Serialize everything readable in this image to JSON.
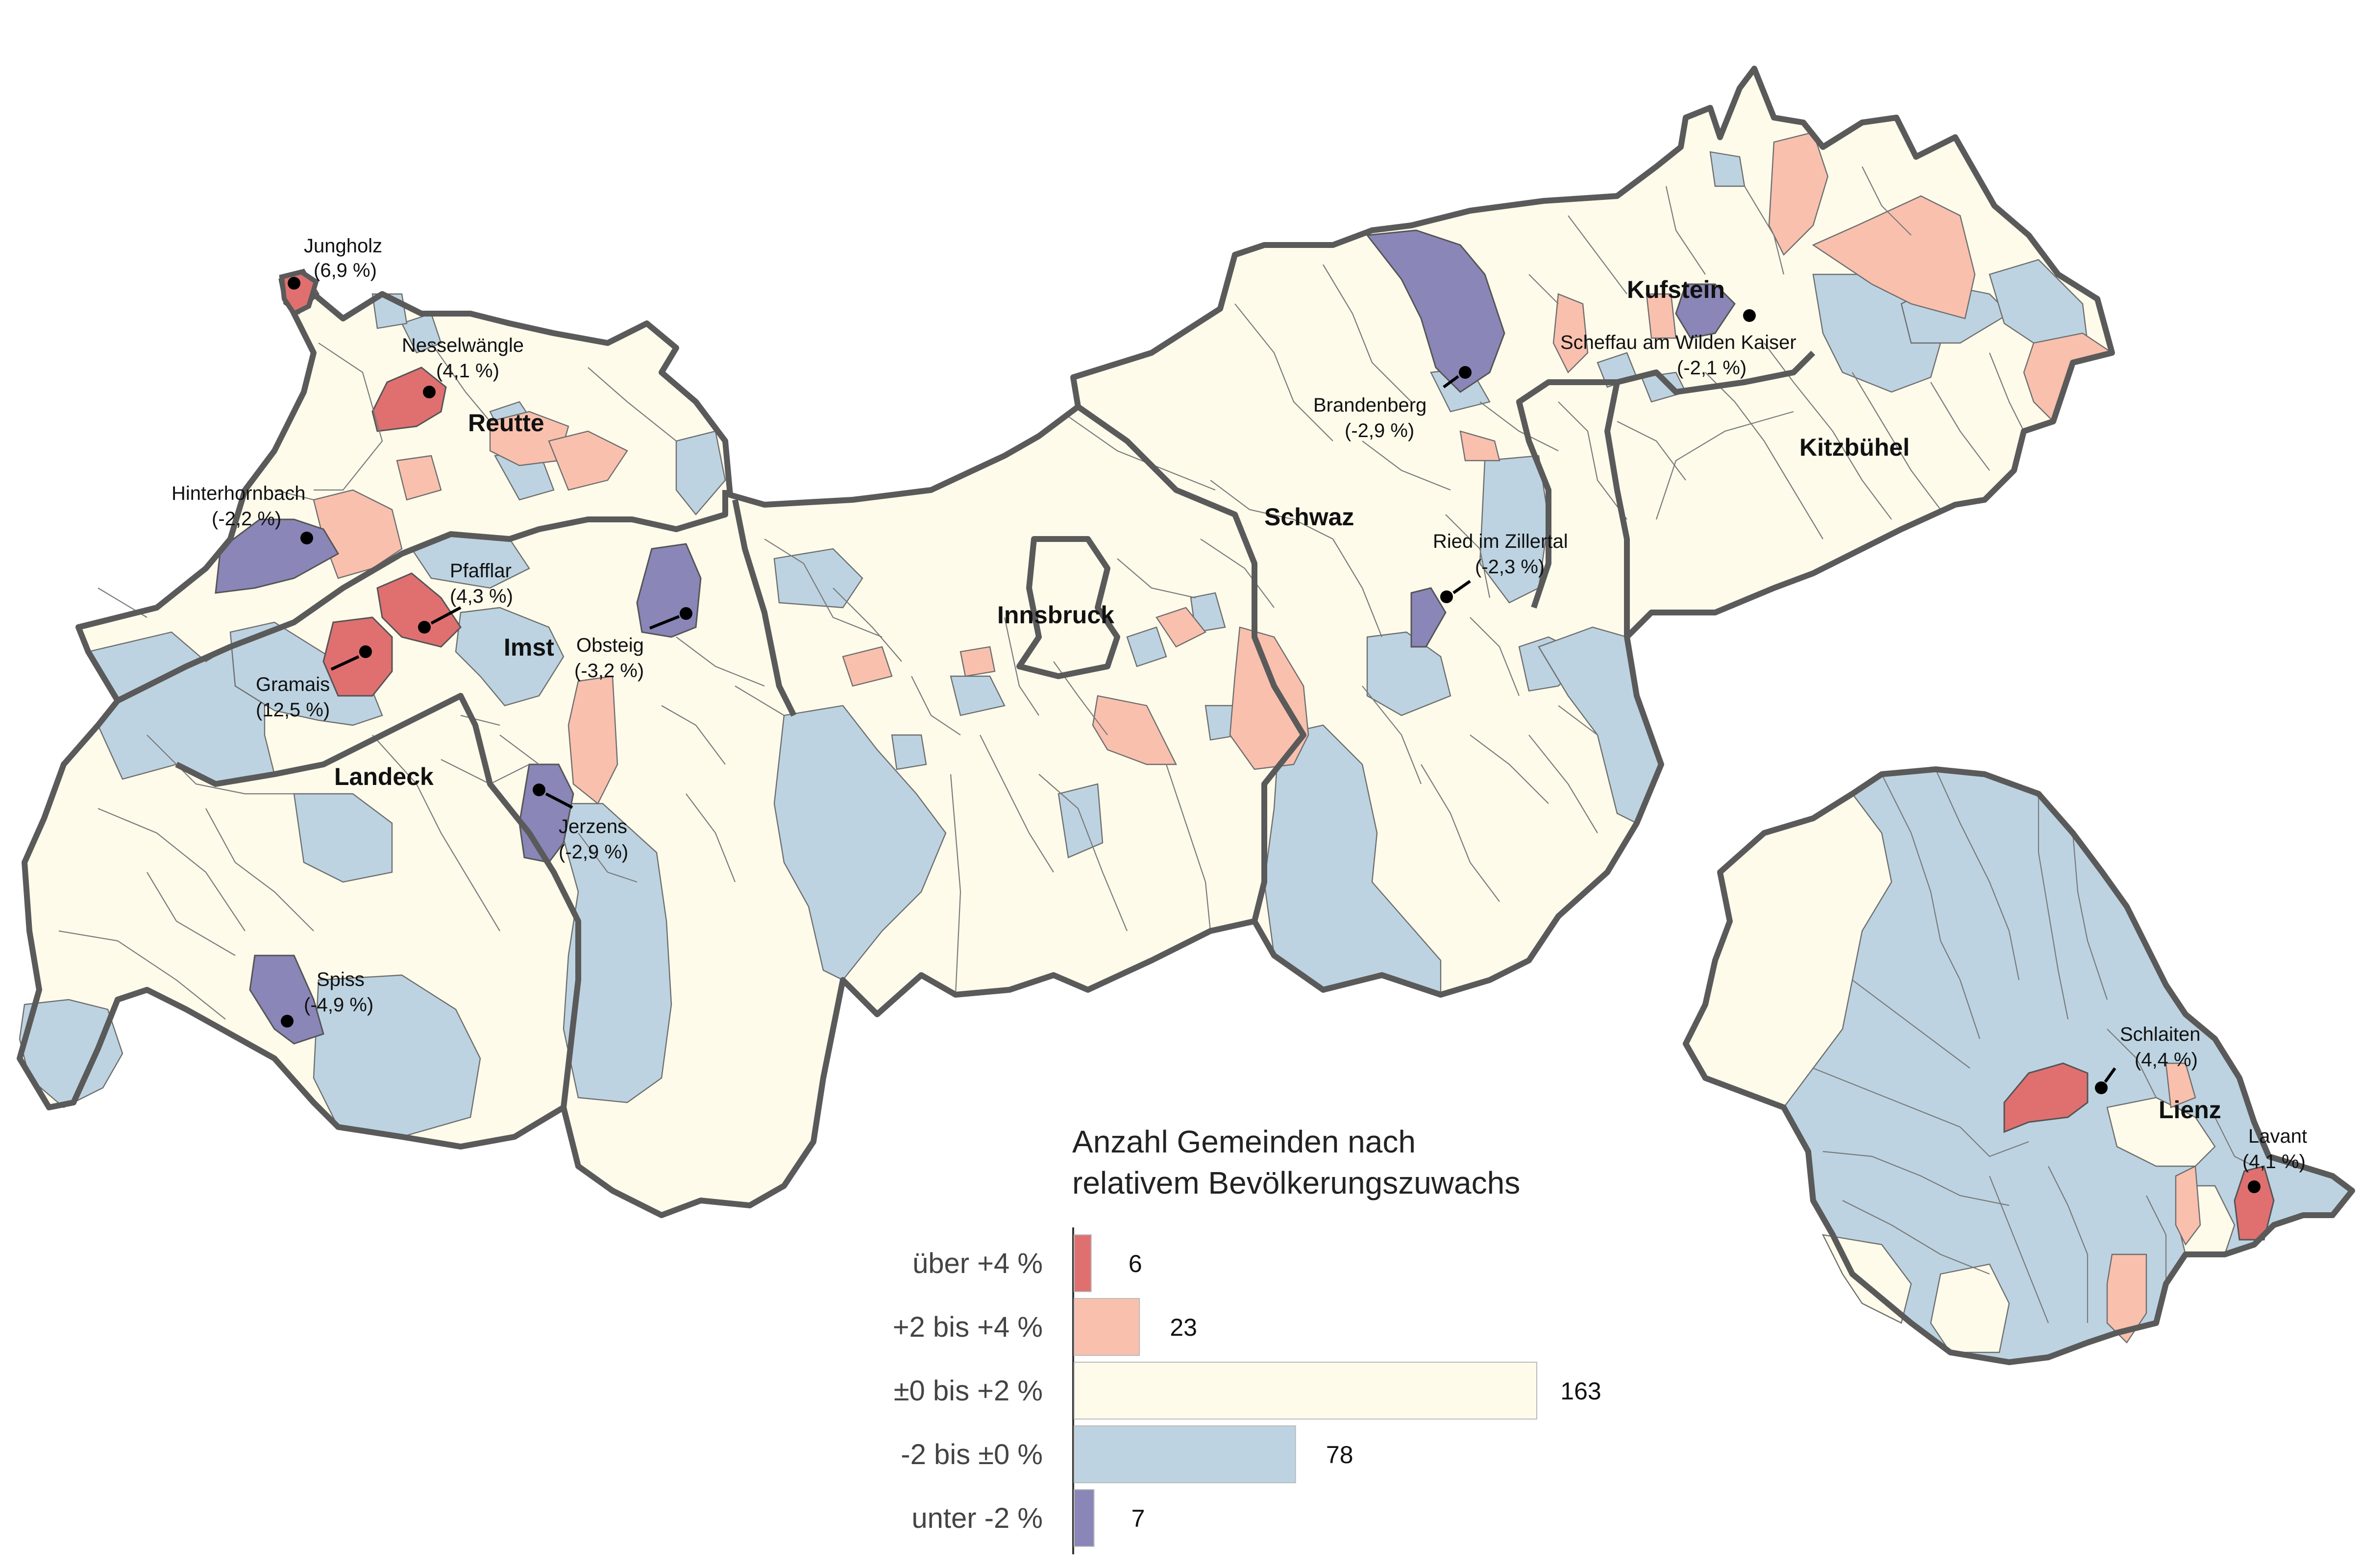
{
  "legend": {
    "title_line1": "Anzahl Gemeinden nach",
    "title_line2": "relativem Bevölkerungszuwachs",
    "categories": [
      {
        "label": "über +4 %",
        "count": 6,
        "color": "#e07070"
      },
      {
        "label": "+2 bis +4 %",
        "count": 23,
        "color": "#f9c0ae"
      },
      {
        "label": "±0 bis +2 %",
        "count": 163,
        "color": "#fefbeb"
      },
      {
        "label": "-2 bis ±0 %",
        "count": 78,
        "color": "#bdd3e1"
      },
      {
        "label": "unter -2 %",
        "count": 7,
        "color": "#8a86b8"
      }
    ]
  },
  "districts": {
    "reutte": "Reutte",
    "imst": "Imst",
    "landeck": "Landeck",
    "innsbruck": "Innsbruck",
    "schwaz": "Schwaz",
    "kufstein": "Kufstein",
    "kitzbuehel": "Kitzbühel",
    "lienz": "Lienz"
  },
  "municipalities": {
    "jungholz": {
      "name": "Jungholz",
      "value": "(6,9 %)"
    },
    "nesselwaengle": {
      "name": "Nesselwängle",
      "value": "(4,1 %)"
    },
    "hinterhornbach": {
      "name": "Hinterhornbach",
      "value": "(-2,2 %)"
    },
    "pfafflar": {
      "name": "Pfafflar",
      "value": "(4,3 %)"
    },
    "gramais": {
      "name": "Gramais",
      "value": "(12,5 %)"
    },
    "obsteig": {
      "name": "Obsteig",
      "value": "(-3,2 %)"
    },
    "jerzens": {
      "name": "Jerzens",
      "value": "(-2,9 %)"
    },
    "spiss": {
      "name": "Spiss",
      "value": "(-4,9 %)"
    },
    "brandenberg": {
      "name": "Brandenberg",
      "value": "(-2,9 %)"
    },
    "scheffau": {
      "name": "Scheffau am Wilden Kaiser",
      "value": "(-2,1 %)"
    },
    "ried": {
      "name": "Ried im Zillertal",
      "value": "(-2,3 %)"
    },
    "schlaiten": {
      "name": "Schlaiten",
      "value": "(4,4 %)"
    },
    "lavant": {
      "name": "Lavant",
      "value": "(4,1 %)"
    }
  }
}
